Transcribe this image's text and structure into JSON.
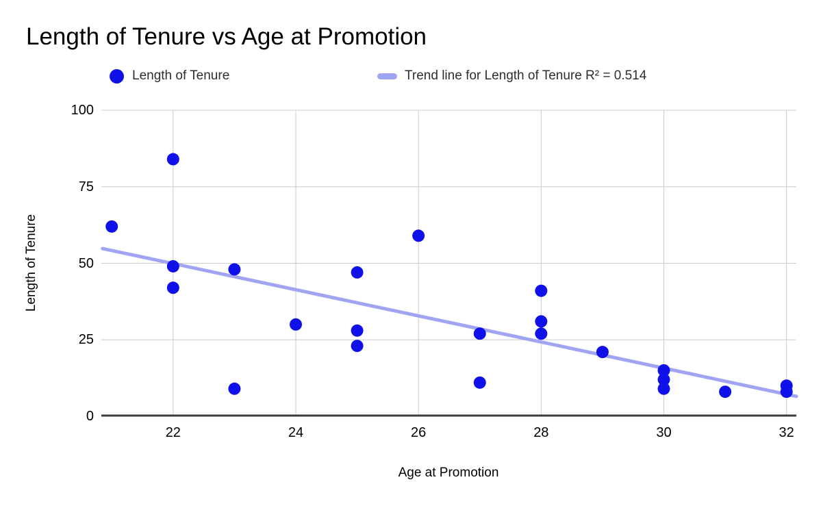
{
  "title": "Length of Tenure vs Age at Promotion",
  "colors": {
    "series": "#1010e8",
    "trend": "#a0a5f3",
    "grid": "#cccccc",
    "axis_line": "#3c3c3c",
    "text": "#000000",
    "legend_text": "#2e2e2e"
  },
  "chart_data": {
    "type": "scatter",
    "title": "Length of Tenure vs Age at Promotion",
    "xlabel": "Age at Promotion",
    "ylabel": "Length of Tenure",
    "xlim": [
      20.83,
      32.16
    ],
    "ylim": [
      0,
      100
    ],
    "x_ticks": [
      22,
      24,
      26,
      28,
      30,
      32
    ],
    "y_ticks": [
      0,
      25,
      50,
      75,
      100
    ],
    "grid": true,
    "legend_position": "top",
    "series": [
      {
        "name": "Length of Tenure",
        "color": "#1010e8",
        "points": [
          [
            21,
            62
          ],
          [
            22,
            84
          ],
          [
            22,
            49
          ],
          [
            22,
            42
          ],
          [
            23,
            48
          ],
          [
            23,
            9
          ],
          [
            24,
            30
          ],
          [
            25,
            47
          ],
          [
            25,
            28
          ],
          [
            25,
            23
          ],
          [
            26,
            59
          ],
          [
            27,
            27
          ],
          [
            27,
            11
          ],
          [
            28,
            41
          ],
          [
            28,
            31
          ],
          [
            28,
            27
          ],
          [
            29,
            21
          ],
          [
            30,
            15
          ],
          [
            30,
            12
          ],
          [
            30,
            9
          ],
          [
            31,
            8
          ],
          [
            32,
            10
          ],
          [
            32,
            8
          ]
        ]
      }
    ],
    "trendline": {
      "label": "Trend line for Length of Tenure R² = 0.514",
      "r_squared": 0.514,
      "color": "#a0a5f3",
      "start": [
        20.85,
        54.8
      ],
      "end": [
        32.16,
        6.5
      ]
    }
  }
}
